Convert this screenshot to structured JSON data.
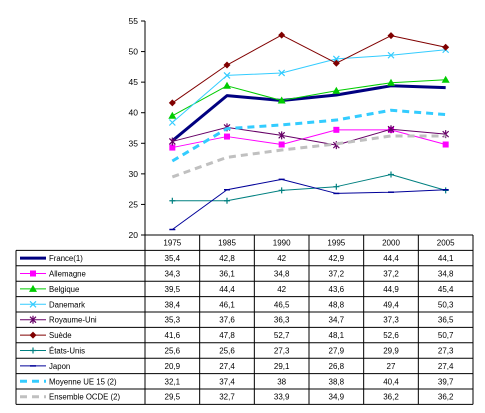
{
  "chart_data": {
    "type": "line",
    "categories": [
      "1975",
      "1985",
      "1990",
      "1995",
      "2000",
      "2005"
    ],
    "ylim": [
      20,
      55
    ],
    "yticks": [
      20,
      25,
      30,
      35,
      40,
      45,
      50,
      55
    ],
    "grid": false,
    "legend": "table-bottom",
    "series": [
      {
        "name": "France(1)",
        "display": [
          "35,4",
          "42,8",
          "42",
          "42,9",
          "44,4",
          "44,1"
        ],
        "values": [
          35.4,
          42.8,
          42,
          42.9,
          44.4,
          44.1
        ],
        "color": "#000080",
        "marker": "none",
        "dash": "solid",
        "width": 3
      },
      {
        "name": "Allemagne",
        "display": [
          "34,3",
          "36,1",
          "34,8",
          "37,2",
          "37,2",
          "34,8"
        ],
        "values": [
          34.3,
          36.1,
          34.8,
          37.2,
          37.2,
          34.8
        ],
        "color": "#ff00ff",
        "marker": "square",
        "dash": "solid",
        "width": 1
      },
      {
        "name": "Belgique",
        "display": [
          "39,5",
          "44,4",
          "42",
          "43,6",
          "44,9",
          "45,4"
        ],
        "values": [
          39.5,
          44.4,
          42,
          43.6,
          44.9,
          45.4
        ],
        "color": "#00cc00",
        "marker": "triangle",
        "dash": "solid",
        "width": 1
      },
      {
        "name": "Danemark",
        "display": [
          "38,4",
          "46,1",
          "46,5",
          "48,8",
          "49,4",
          "50,3"
        ],
        "values": [
          38.4,
          46.1,
          46.5,
          48.8,
          49.4,
          50.3
        ],
        "color": "#33ccff",
        "marker": "x",
        "dash": "solid",
        "width": 1
      },
      {
        "name": "Royaume-Uni",
        "display": [
          "35,3",
          "37,6",
          "36,3",
          "34,7",
          "37,3",
          "36,5"
        ],
        "values": [
          35.3,
          37.6,
          36.3,
          34.7,
          37.3,
          36.5
        ],
        "color": "#660066",
        "marker": "star",
        "dash": "solid",
        "width": 1
      },
      {
        "name": "Suède",
        "display": [
          "41,6",
          "47,8",
          "52,7",
          "48,1",
          "52,6",
          "50,7"
        ],
        "values": [
          41.6,
          47.8,
          52.7,
          48.1,
          52.6,
          50.7
        ],
        "color": "#800000",
        "marker": "diamond",
        "dash": "solid",
        "width": 1
      },
      {
        "name": "États-Unis",
        "display": [
          "25,6",
          "25,6",
          "27,3",
          "27,9",
          "29,9",
          "27,3"
        ],
        "values": [
          25.6,
          25.6,
          27.3,
          27.9,
          29.9,
          27.3
        ],
        "color": "#008080",
        "marker": "plus",
        "dash": "solid",
        "width": 1
      },
      {
        "name": "Japon",
        "display": [
          "20,9",
          "27,4",
          "29,1",
          "26,8",
          "27",
          "27,4"
        ],
        "values": [
          20.9,
          27.4,
          29.1,
          26.8,
          27,
          27.4
        ],
        "color": "#000099",
        "marker": "dash",
        "dash": "solid",
        "width": 1
      },
      {
        "name": "Moyenne UE 15 (2)",
        "display": [
          "32,1",
          "37,4",
          "38",
          "38,8",
          "40,4",
          "39,7"
        ],
        "values": [
          32.1,
          37.4,
          38,
          38.8,
          40.4,
          39.7
        ],
        "color": "#33ccff",
        "marker": "none",
        "dash": "dashed",
        "width": 3
      },
      {
        "name": "Ensemble OCDE (2)",
        "display": [
          "29,5",
          "32,7",
          "33,9",
          "34,9",
          "36,2",
          "36,2"
        ],
        "values": [
          29.5,
          32.7,
          33.9,
          34.9,
          36.2,
          36.2
        ],
        "color": "#c0c0c0",
        "marker": "none",
        "dash": "dashed",
        "width": 3
      }
    ]
  }
}
